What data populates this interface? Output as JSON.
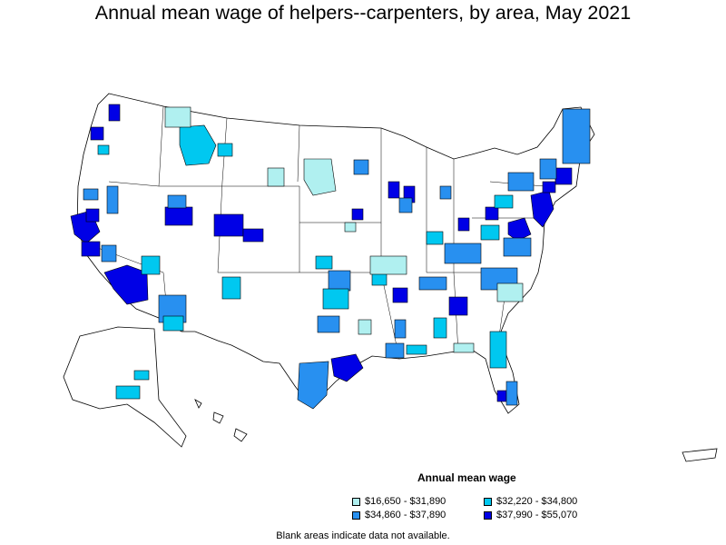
{
  "title": "Annual mean wage of helpers--carpenters, by area, May 2021",
  "legend": {
    "title": "Annual mean wage",
    "items": [
      {
        "label": "$16,650 - $31,890",
        "color": "#b0f0f0"
      },
      {
        "label": "$32,220 - $34,800",
        "color": "#00c8f0"
      },
      {
        "label": "$34,860 - $37,890",
        "color": "#2890f0"
      },
      {
        "label": "$37,990 - $55,070",
        "color": "#0000e6"
      }
    ]
  },
  "note": "Blank areas indicate data not available.",
  "colors": {
    "low": "#b0f0f0",
    "mid_low": "#00c8f0",
    "mid_high": "#2890f0",
    "high": "#0000e6",
    "blank": "#ffffff",
    "border": "#000000"
  }
}
